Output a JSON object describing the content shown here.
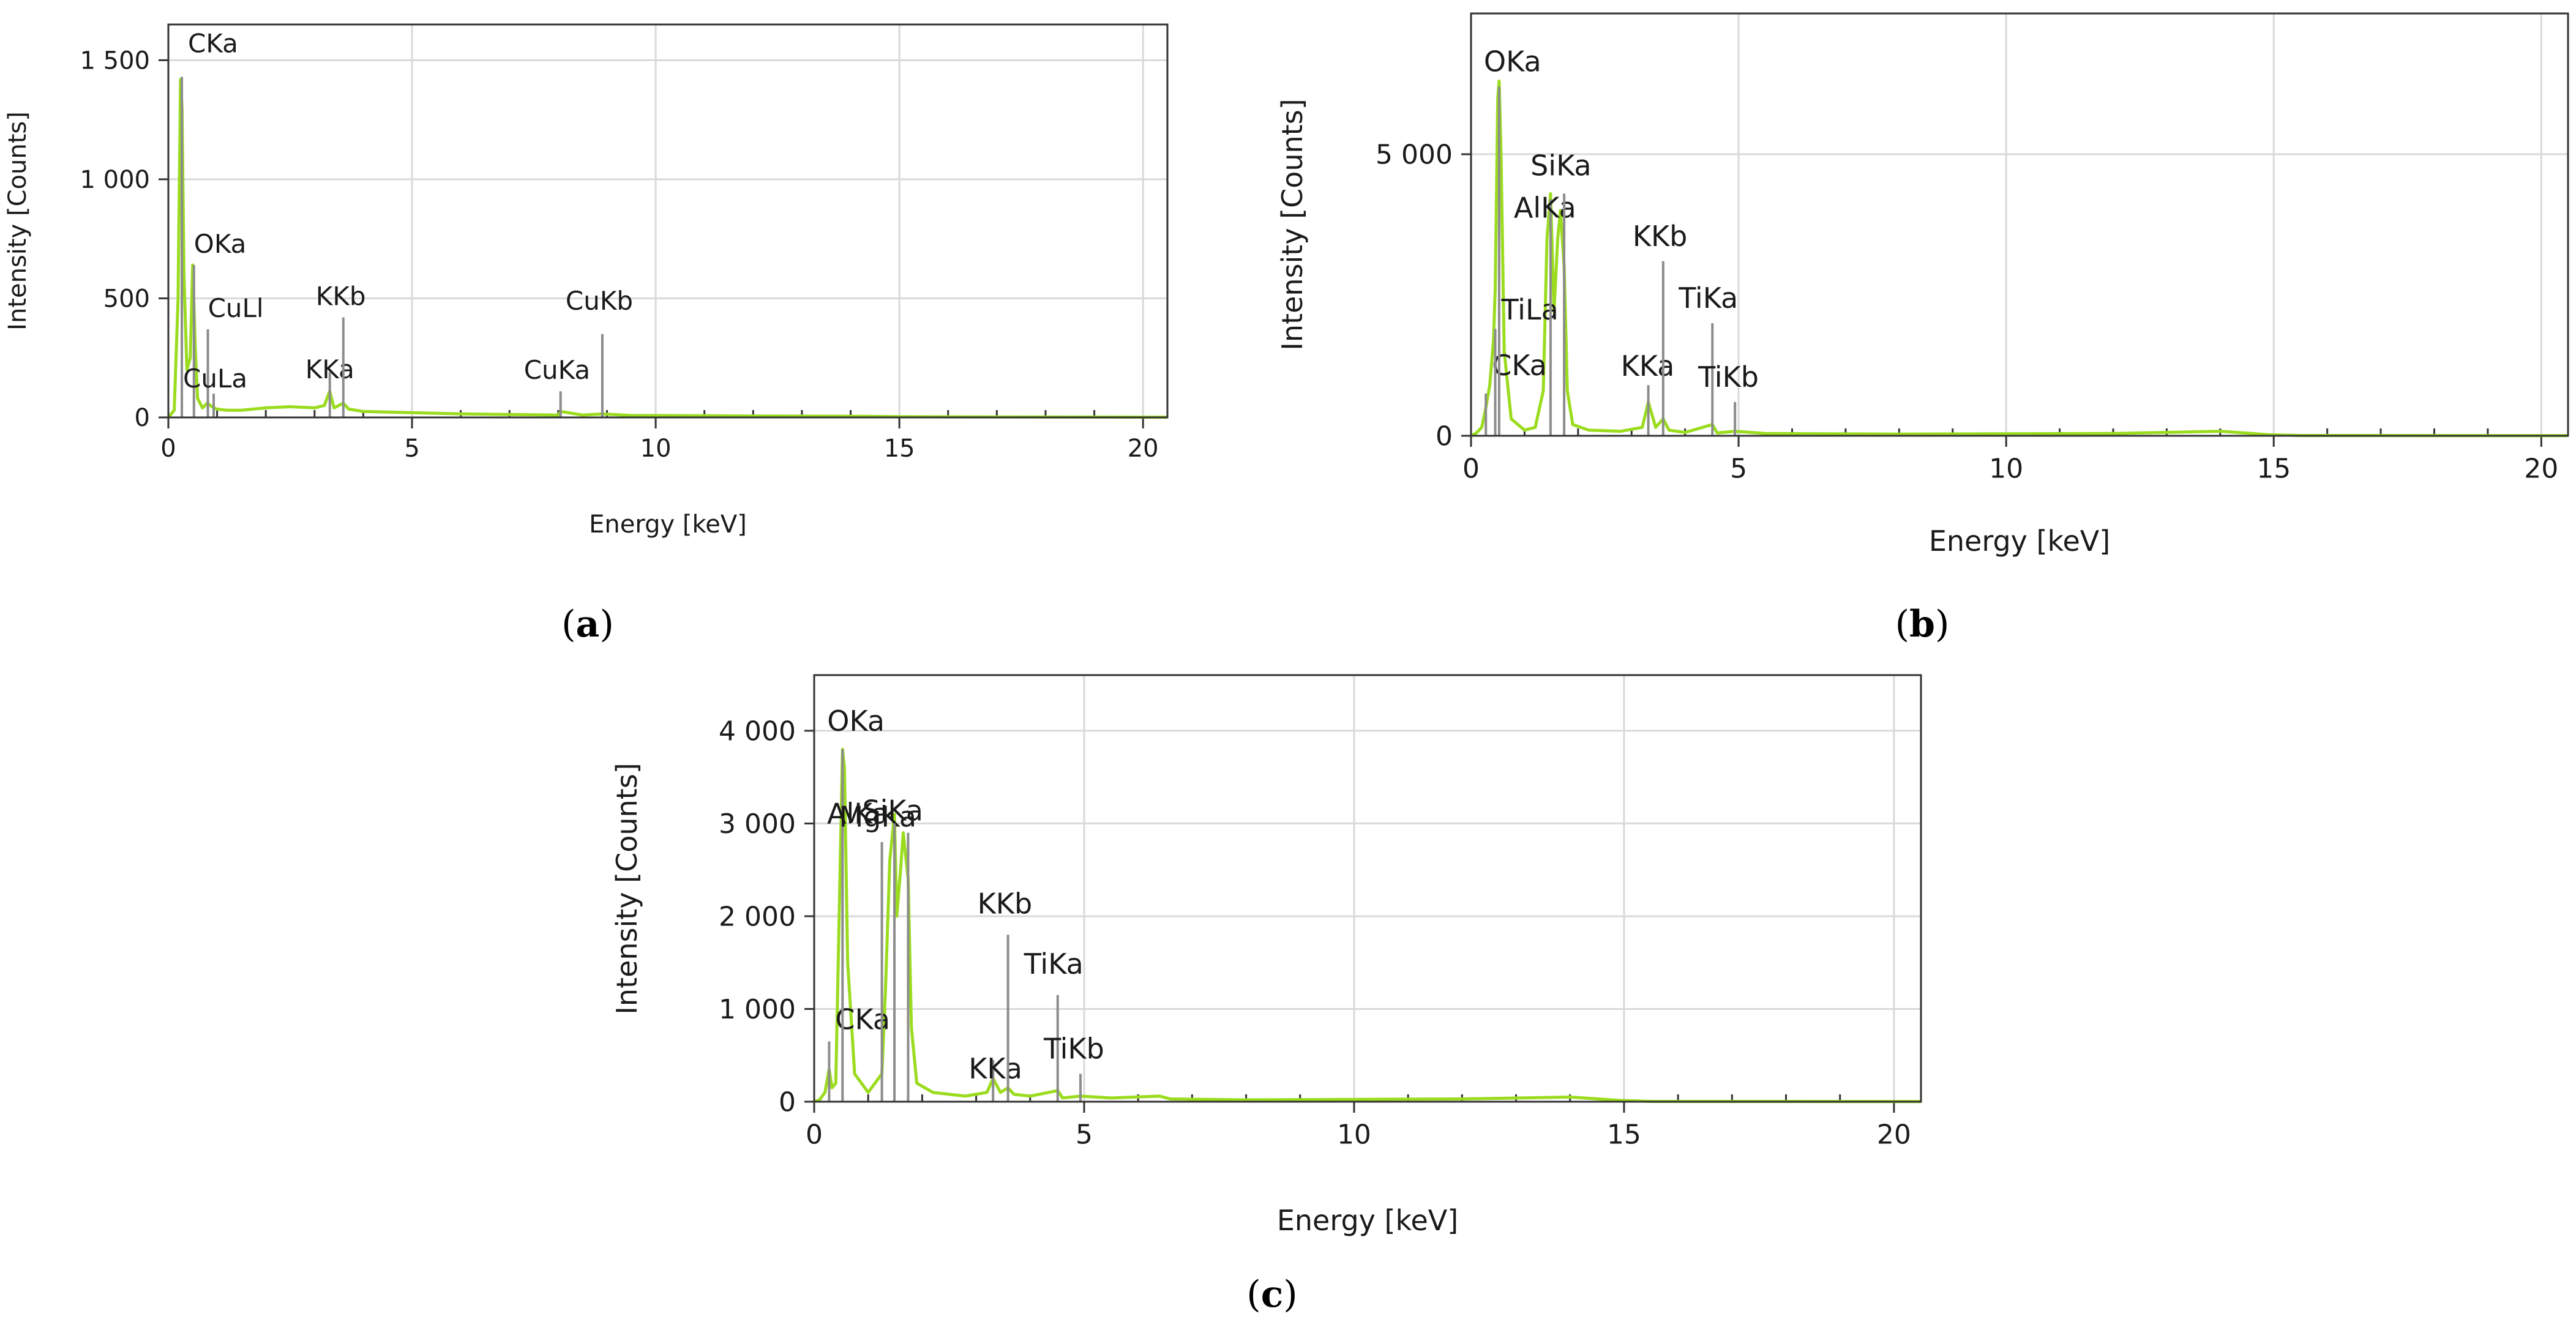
{
  "chart_data": [
    {
      "type": "line",
      "panel": "a",
      "caption_letter": "a",
      "xlabel": "Energy [keV]",
      "ylabel": "Intensity [Counts]",
      "xlim": [
        0,
        20.5
      ],
      "ylim": [
        0,
        1650
      ],
      "xticks": [
        0,
        5,
        10,
        15,
        20
      ],
      "xtick_labels": [
        "0",
        "5",
        "10",
        "15",
        "20"
      ],
      "yticks": [
        0,
        500,
        1000,
        1500
      ],
      "ytick_labels": [
        "0",
        "500",
        "1 000",
        "1 500"
      ],
      "grid": true,
      "series": [
        {
          "name": "spectrum",
          "color": "#9bdc1f",
          "x": [
            0.0,
            0.12,
            0.2,
            0.25,
            0.28,
            0.32,
            0.38,
            0.45,
            0.5,
            0.55,
            0.6,
            0.7,
            0.8,
            0.93,
            1.0,
            1.2,
            1.5,
            2.0,
            2.5,
            3.0,
            3.2,
            3.31,
            3.4,
            3.59,
            3.7,
            4.0,
            5.0,
            6.0,
            7.0,
            8.0,
            8.05,
            8.5,
            8.91,
            9.5,
            10.0,
            12.0,
            14.0,
            15.0,
            17.0,
            20.5
          ],
          "y": [
            0,
            30,
            500,
            1420,
            1300,
            600,
            200,
            250,
            640,
            300,
            80,
            40,
            60,
            40,
            35,
            30,
            30,
            40,
            45,
            40,
            50,
            110,
            40,
            60,
            35,
            25,
            20,
            15,
            12,
            10,
            25,
            10,
            15,
            8,
            8,
            6,
            5,
            3,
            2,
            1
          ]
        }
      ],
      "peaks": [
        {
          "label": "CKa",
          "x": 0.277,
          "marker_top": 1430
        },
        {
          "label": "OKa",
          "x": 0.525,
          "marker_top": 640
        },
        {
          "label": "CuLl",
          "x": 0.811,
          "marker_top": 370
        },
        {
          "label": "CuLa",
          "x": 0.93,
          "marker_top": 100
        },
        {
          "label": "KKa",
          "x": 3.313,
          "marker_top": 190
        },
        {
          "label": "KKb",
          "x": 3.59,
          "marker_top": 420
        },
        {
          "label": "CuKa",
          "x": 8.048,
          "marker_top": 110
        },
        {
          "label": "CuKb",
          "x": 8.905,
          "marker_top": 350
        }
      ]
    },
    {
      "type": "line",
      "panel": "b",
      "caption_letter": "b",
      "xlabel": "Energy [keV]",
      "ylabel": "Intensity [Counts]",
      "xlim": [
        0,
        20.5
      ],
      "ylim": [
        0,
        7500
      ],
      "xticks": [
        0,
        5,
        10,
        15,
        20
      ],
      "xtick_labels": [
        "0",
        "5",
        "10",
        "15",
        "20"
      ],
      "yticks": [
        0,
        5000
      ],
      "ytick_labels": [
        "0",
        "5 000"
      ],
      "grid": true,
      "series": [
        {
          "name": "spectrum",
          "color": "#9bdc1f",
          "x": [
            0.0,
            0.1,
            0.2,
            0.277,
            0.35,
            0.42,
            0.452,
            0.5,
            0.525,
            0.56,
            0.62,
            0.75,
            1.0,
            1.2,
            1.35,
            1.42,
            1.486,
            1.55,
            1.62,
            1.67,
            1.74,
            1.8,
            1.9,
            2.2,
            2.8,
            3.2,
            3.313,
            3.45,
            3.59,
            3.7,
            4.0,
            4.51,
            4.6,
            4.93,
            5.5,
            8.0,
            12.0,
            14.0,
            14.9,
            15.5,
            20.5
          ],
          "y": [
            0,
            50,
            150,
            500,
            900,
            1700,
            2600,
            6000,
            6300,
            5000,
            1500,
            300,
            100,
            150,
            800,
            3500,
            4300,
            2200,
            3500,
            4000,
            3000,
            800,
            200,
            100,
            80,
            150,
            600,
            150,
            300,
            100,
            60,
            200,
            50,
            80,
            40,
            30,
            40,
            80,
            20,
            5,
            2
          ]
        }
      ],
      "peaks": [
        {
          "label": "CKa",
          "x": 0.277,
          "marker_top": 750
        },
        {
          "label": "TiLa",
          "x": 0.452,
          "marker_top": 1900
        },
        {
          "label": "OKa",
          "x": 0.525,
          "marker_top": 6200
        },
        {
          "label": "AlKa",
          "x": 1.486,
          "marker_top": 4200
        },
        {
          "label": "SiKa",
          "x": 1.74,
          "marker_top": 4300
        },
        {
          "label": "KKa",
          "x": 3.313,
          "marker_top": 900
        },
        {
          "label": "KKb",
          "x": 3.59,
          "marker_top": 3100
        },
        {
          "label": "TiKa",
          "x": 4.51,
          "marker_top": 2000
        },
        {
          "label": "TiKb",
          "x": 4.932,
          "marker_top": 600
        }
      ]
    },
    {
      "type": "line",
      "panel": "c",
      "caption_letter": "c",
      "xlabel": "Energy [keV]",
      "ylabel": "Intensity [Counts]",
      "xlim": [
        0,
        20.5
      ],
      "ylim": [
        0,
        4600
      ],
      "xticks": [
        0,
        5,
        10,
        15,
        20
      ],
      "xtick_labels": [
        "0",
        "5",
        "10",
        "15",
        "20"
      ],
      "yticks": [
        0,
        1000,
        2000,
        3000,
        4000
      ],
      "ytick_labels": [
        "0",
        "1 000",
        "2 000",
        "3 000",
        "4 000"
      ],
      "grid": true,
      "series": [
        {
          "name": "spectrum",
          "color": "#9bdc1f",
          "x": [
            0.0,
            0.1,
            0.2,
            0.277,
            0.33,
            0.4,
            0.525,
            0.56,
            0.62,
            0.75,
            1.0,
            1.254,
            1.32,
            1.4,
            1.486,
            1.53,
            1.6,
            1.65,
            1.74,
            1.8,
            1.9,
            2.2,
            2.8,
            3.2,
            3.313,
            3.45,
            3.59,
            3.7,
            4.0,
            4.51,
            4.6,
            4.93,
            5.5,
            6.4,
            6.6,
            8.0,
            12.0,
            14.0,
            14.9,
            15.5,
            20.5
          ],
          "y": [
            0,
            20,
            100,
            350,
            150,
            200,
            3800,
            3600,
            1500,
            300,
            100,
            300,
            1200,
            2600,
            3100,
            2000,
            2500,
            2900,
            2400,
            800,
            200,
            100,
            60,
            100,
            250,
            100,
            150,
            80,
            60,
            120,
            40,
            60,
            40,
            60,
            30,
            20,
            30,
            50,
            15,
            3,
            1
          ]
        }
      ],
      "peaks": [
        {
          "label": "CKa",
          "x": 0.277,
          "marker_top": 650
        },
        {
          "label": "OKa",
          "x": 0.525,
          "marker_top": 3800
        },
        {
          "label": "MgKa",
          "x": 1.254,
          "marker_top": 2800
        },
        {
          "label": "AlKa",
          "x": 1.486,
          "marker_top": 3000
        },
        {
          "label": "SiKa",
          "x": 1.74,
          "marker_top": 2900
        },
        {
          "label": "KKa",
          "x": 3.313,
          "marker_top": 450
        },
        {
          "label": "KKb",
          "x": 3.59,
          "marker_top": 1800
        },
        {
          "label": "TiKa",
          "x": 4.51,
          "marker_top": 1150
        },
        {
          "label": "TiKb",
          "x": 4.932,
          "marker_top": 300
        }
      ]
    }
  ]
}
